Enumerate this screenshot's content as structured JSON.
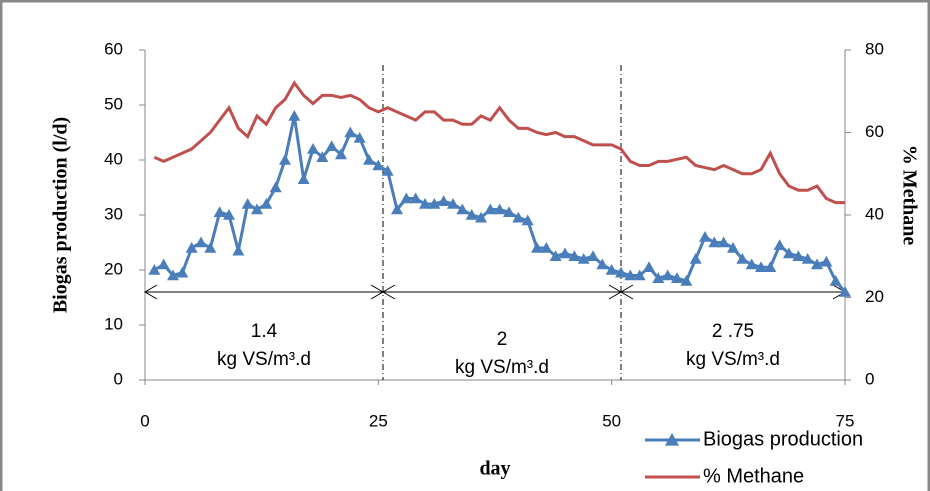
{
  "chart_data": {
    "type": "line",
    "y_label": "Biogas production (l/d)",
    "y2_label": "% Methane",
    "x_label": "day",
    "x": [
      1,
      2,
      3,
      4,
      5,
      6,
      7,
      8,
      9,
      10,
      11,
      12,
      13,
      14,
      15,
      16,
      17,
      18,
      19,
      20,
      21,
      22,
      23,
      24,
      25,
      26,
      27,
      28,
      29,
      30,
      31,
      32,
      33,
      34,
      35,
      36,
      37,
      38,
      39,
      40,
      41,
      42,
      43,
      44,
      45,
      46,
      47,
      48,
      49,
      50,
      51,
      52,
      53,
      54,
      55,
      56,
      57,
      58,
      59,
      60,
      61,
      62,
      63,
      64,
      65,
      66,
      67,
      68,
      69,
      70,
      71,
      72,
      73,
      74,
      75
    ],
    "xlim": [
      0,
      75
    ],
    "xticks": [
      0,
      25,
      50,
      75
    ],
    "ylim": [
      0,
      60
    ],
    "yticks": [
      0,
      10,
      20,
      30,
      40,
      50,
      60
    ],
    "y2lim": [
      0,
      80
    ],
    "y2ticks": [
      0,
      20,
      40,
      60,
      80
    ],
    "legend": "bottom-right",
    "series": [
      {
        "name": "Biogas production",
        "color": "#4a7ebb",
        "marker": "triangle",
        "values": [
          20,
          21,
          19,
          19.5,
          24,
          25,
          24,
          30.5,
          30,
          23.5,
          32,
          31,
          32,
          35,
          40,
          48,
          36.5,
          42,
          40.5,
          42.5,
          41,
          45,
          44,
          40,
          39,
          38,
          31,
          33,
          33,
          32,
          32,
          32.5,
          32,
          31,
          30,
          29.5,
          31,
          31,
          30.5,
          29.5,
          29,
          24,
          24,
          22.5,
          23,
          22.5,
          22,
          22.5,
          21,
          20,
          19.5,
          19,
          19,
          20.5,
          18.5,
          19,
          18.5,
          18,
          22,
          26,
          25,
          25,
          24,
          22,
          21,
          20.5,
          20.5,
          24.5,
          23,
          22.5,
          22,
          21,
          21.5,
          18,
          16
        ]
      },
      {
        "name": "% Methane",
        "color": "#c0504d",
        "axis": "y2",
        "values": [
          54,
          53,
          54,
          55,
          56,
          58,
          60,
          63,
          66,
          61,
          59,
          64,
          62,
          66,
          68,
          72,
          69,
          67,
          69,
          69,
          68.5,
          69,
          68,
          66,
          65,
          66,
          65,
          64,
          63,
          65,
          65,
          63,
          63,
          62,
          62,
          64,
          63,
          66,
          63,
          61,
          61,
          60,
          59.5,
          60,
          59,
          59,
          58,
          57,
          57,
          57,
          56,
          53,
          52,
          52,
          53,
          53,
          53.5,
          54,
          52,
          51.5,
          51,
          52,
          51,
          50,
          50,
          51,
          55,
          50,
          47,
          46,
          46,
          47,
          44,
          43,
          43
        ]
      }
    ],
    "phases": [
      {
        "rate": "1.4",
        "unit": "kg VS/m³.d",
        "start": 0,
        "end": 25.5
      },
      {
        "rate": "2",
        "unit": "kg VS/m³.d",
        "start": 25.5,
        "end": 51
      },
      {
        "rate": "2 .75",
        "unit": "kg VS/m³.d",
        "start": 51,
        "end": 75
      }
    ]
  }
}
